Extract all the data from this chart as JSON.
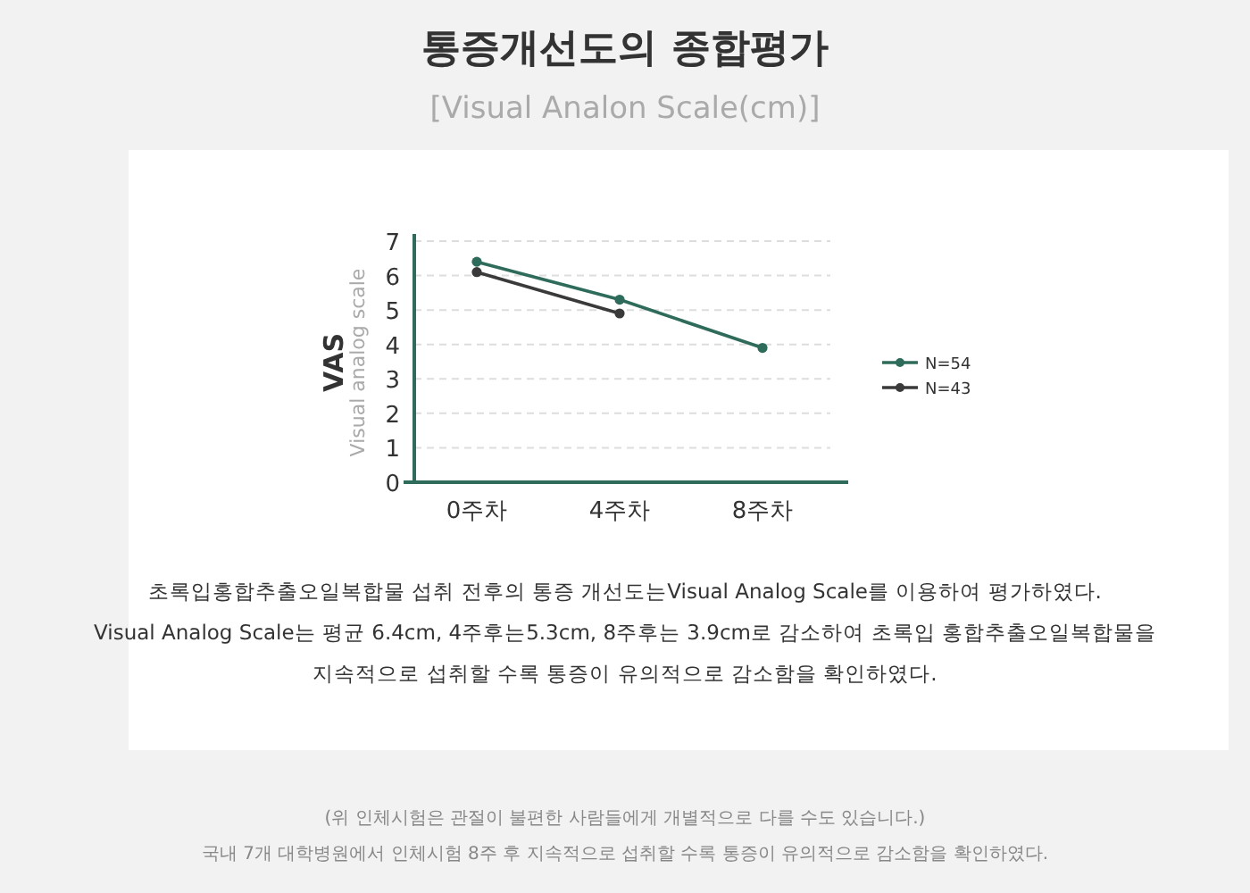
{
  "chart_data": {
    "type": "line",
    "title": "통증개선도의 종합평가",
    "subtitle": "[Visual Analon Scale(cm)]",
    "ylabel": "VAS",
    "categories": [
      "0주차",
      "4주차",
      "8주차"
    ],
    "series": [
      {
        "name": "N=54",
        "color": "#2e6b5a",
        "values": [
          6.4,
          5.3,
          3.9
        ]
      },
      {
        "name": "N=43",
        "color": "#3a3a3a",
        "values": [
          6.1,
          4.9,
          null
        ]
      }
    ],
    "ylim": [
      0,
      7
    ],
    "yticks": [
      0,
      1,
      2,
      3,
      4,
      5,
      6,
      7
    ],
    "grid": "y",
    "legend": "right",
    "marker": "circle",
    "line_style": "solid",
    "annotations": [
      "Visual analog scale",
      "초록입홍합추출오일복합물 섭취 전후의 통증 개선도는Visual Analog Scale를 이용하여 평가하였다.",
      "Visual Analog Scale는 평균 6.4cm, 4주후는5.3cm, 8주후는 3.9cm로 감소하여 초록입 홍합추출오일복합물을",
      "지속적으로 섭취할 수록 통증이 유의적으로 감소함을 확인하였다.",
      "(위 인체시험은 관절이 불편한 사람들에게 개별적으로 다를 수도 있습니다.)",
      "국내 7개 대학병원에서 인체시험 8주 후 지속적으로 섭취할 수록 통증이 유의적으로 감소함을 확인하였다."
    ]
  }
}
